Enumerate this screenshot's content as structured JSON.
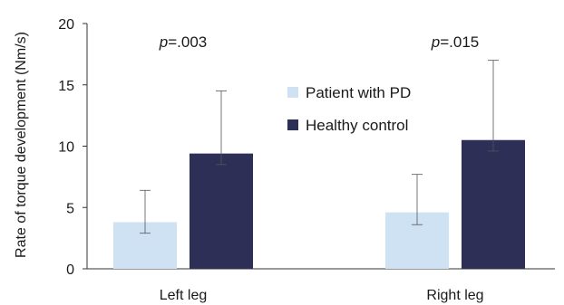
{
  "chart_data": {
    "type": "bar",
    "title": "",
    "xlabel": "",
    "ylabel": "Rate of torque development (Nm/s)",
    "ylim": [
      0,
      20
    ],
    "yticks": [
      0,
      5,
      10,
      15,
      20
    ],
    "grid": false,
    "legend_position": "top-center",
    "categories": [
      "Left leg",
      "Right leg"
    ],
    "series": [
      {
        "name": "Patient with PD",
        "color": "#cfe2f3",
        "values": [
          3.8,
          4.6
        ],
        "err_low": [
          2.9,
          3.6
        ],
        "err_high": [
          6.4,
          7.7
        ]
      },
      {
        "name": "Healthy control",
        "color": "#2e2f57",
        "values": [
          9.4,
          10.5
        ],
        "err_low": [
          8.5,
          9.6
        ],
        "err_high": [
          14.5,
          17.0
        ]
      }
    ],
    "annotations": [
      {
        "category": "Left leg",
        "prefix": "p",
        "text": "=.003"
      },
      {
        "category": "Right leg",
        "prefix": "p",
        "text": "=.015"
      }
    ]
  }
}
